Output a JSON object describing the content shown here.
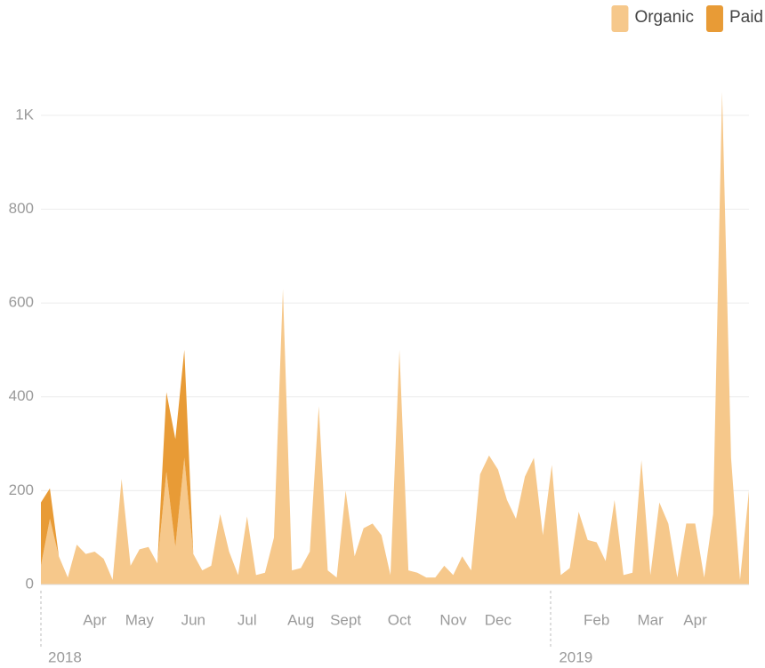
{
  "chart_data": {
    "type": "area",
    "stacked": true,
    "categories": [
      null,
      null,
      null,
      null,
      null,
      null,
      "Apr",
      null,
      null,
      null,
      null,
      "May",
      null,
      null,
      null,
      null,
      null,
      "Jun",
      null,
      null,
      null,
      null,
      null,
      "Jul",
      null,
      null,
      null,
      null,
      null,
      "Aug",
      null,
      null,
      null,
      null,
      "Sept",
      null,
      null,
      null,
      null,
      null,
      "Oct",
      null,
      null,
      null,
      null,
      null,
      "Nov",
      null,
      null,
      null,
      null,
      "Dec",
      null,
      null,
      null,
      null,
      null,
      null,
      null,
      null,
      null,
      null,
      "Feb",
      null,
      null,
      null,
      null,
      null,
      "Mar",
      null,
      null,
      null,
      null,
      "Apr",
      null,
      null,
      null,
      null,
      null,
      null
    ],
    "years": [
      "2018",
      null,
      null,
      null,
      null,
      null,
      null,
      null,
      null,
      null,
      null,
      null,
      null,
      null,
      null,
      null,
      null,
      null,
      null,
      null,
      null,
      null,
      null,
      null,
      null,
      null,
      null,
      null,
      null,
      null,
      null,
      null,
      null,
      null,
      null,
      null,
      null,
      null,
      null,
      null,
      null,
      null,
      null,
      null,
      null,
      null,
      null,
      null,
      null,
      null,
      null,
      null,
      null,
      null,
      null,
      null,
      null,
      "2019",
      null,
      null,
      null,
      null,
      null,
      null,
      null,
      null,
      null,
      null,
      null,
      null,
      null,
      null,
      null,
      null,
      null,
      null,
      null,
      null,
      null,
      null
    ],
    "series": [
      {
        "name": "Organic",
        "color": "#f6c88b",
        "values": [
          40,
          140,
          60,
          15,
          85,
          65,
          70,
          55,
          10,
          225,
          40,
          75,
          80,
          45,
          240,
          80,
          270,
          65,
          30,
          40,
          150,
          70,
          20,
          145,
          20,
          25,
          100,
          630,
          30,
          35,
          70,
          380,
          30,
          15,
          200,
          60,
          120,
          130,
          105,
          20,
          500,
          30,
          25,
          15,
          15,
          40,
          20,
          60,
          30,
          235,
          275,
          245,
          180,
          140,
          230,
          270,
          105,
          255,
          20,
          35,
          155,
          95,
          90,
          50,
          180,
          20,
          25,
          265,
          20,
          175,
          130,
          15,
          130,
          130,
          15,
          150,
          1050,
          270,
          10,
          200
        ]
      },
      {
        "name": "Paid",
        "color": "#e89b36",
        "values": [
          135,
          65,
          0,
          0,
          0,
          0,
          0,
          0,
          0,
          0,
          0,
          0,
          0,
          0,
          170,
          230,
          230,
          0,
          0,
          0,
          0,
          0,
          0,
          0,
          0,
          0,
          0,
          0,
          0,
          0,
          0,
          0,
          0,
          0,
          0,
          0,
          0,
          0,
          0,
          0,
          0,
          0,
          0,
          0,
          0,
          0,
          0,
          0,
          0,
          0,
          0,
          0,
          0,
          0,
          0,
          0,
          0,
          0,
          0,
          0,
          0,
          0,
          0,
          0,
          0,
          0,
          0,
          0,
          0,
          0,
          0,
          0,
          0,
          0,
          0,
          0,
          0,
          0,
          0,
          0
        ]
      }
    ],
    "ylim": [
      0,
      1100
    ],
    "yticks": [
      0,
      200,
      400,
      600,
      800,
      {
        "value": 1000,
        "label": "1K"
      }
    ],
    "grid": true,
    "legend": "top-right"
  }
}
